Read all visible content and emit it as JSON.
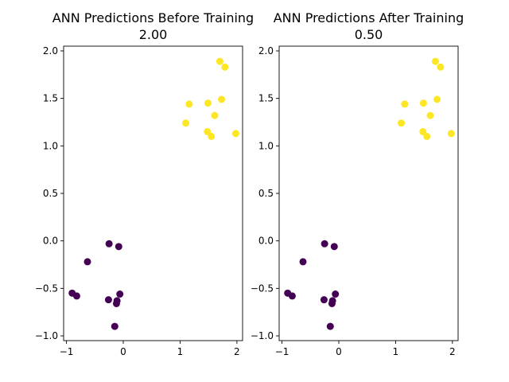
{
  "chart_data": [
    {
      "type": "scatter",
      "title": "ANN Predictions Before Training\n2.00",
      "title_lines": [
        "ANN Predictions Before Training",
        "2.00"
      ],
      "xlim": [
        -1.05,
        2.1
      ],
      "ylim": [
        -1.05,
        2.05
      ],
      "xticks": [
        -1,
        0,
        1,
        2
      ],
      "xtick_labels": [
        "−1",
        "0",
        "1",
        "2"
      ],
      "yticks": [
        -1.0,
        -0.5,
        0.0,
        0.5,
        1.0,
        1.5,
        2.0
      ],
      "ytick_labels": [
        "−1.0",
        "−0.5",
        "0.0",
        "0.5",
        "1.0",
        "1.5",
        "2.0"
      ],
      "grid": false,
      "series": [
        {
          "color": "#440154",
          "points": [
            [
              -0.25,
              -0.03
            ],
            [
              -0.08,
              -0.06
            ],
            [
              -0.63,
              -0.22
            ],
            [
              -0.9,
              -0.55
            ],
            [
              -0.82,
              -0.58
            ],
            [
              -0.26,
              -0.62
            ],
            [
              -0.06,
              -0.56
            ],
            [
              -0.11,
              -0.63
            ],
            [
              -0.12,
              -0.66
            ],
            [
              -0.15,
              -0.9
            ]
          ]
        },
        {
          "color": "#fde725",
          "points": [
            [
              1.7,
              1.89
            ],
            [
              1.79,
              1.83
            ],
            [
              1.16,
              1.44
            ],
            [
              1.49,
              1.45
            ],
            [
              1.73,
              1.49
            ],
            [
              1.61,
              1.32
            ],
            [
              1.1,
              1.24
            ],
            [
              1.48,
              1.15
            ],
            [
              1.55,
              1.1
            ],
            [
              1.98,
              1.13
            ]
          ]
        }
      ]
    },
    {
      "type": "scatter",
      "title": "ANN Predictions After Training\n0.50",
      "title_lines": [
        "ANN Predictions After Training",
        "0.50"
      ],
      "xlim": [
        -1.05,
        2.1
      ],
      "ylim": [
        -1.05,
        2.05
      ],
      "xticks": [
        -1,
        0,
        1,
        2
      ],
      "xtick_labels": [
        "−1",
        "0",
        "1",
        "2"
      ],
      "yticks": [
        -1.0,
        -0.5,
        0.0,
        0.5,
        1.0,
        1.5,
        2.0
      ],
      "ytick_labels": [
        "−1.0",
        "−0.5",
        "0.0",
        "0.5",
        "1.0",
        "1.5",
        "2.0"
      ],
      "grid": false,
      "series": [
        {
          "color": "#440154",
          "points": [
            [
              -0.25,
              -0.03
            ],
            [
              -0.08,
              -0.06
            ],
            [
              -0.63,
              -0.22
            ],
            [
              -0.9,
              -0.55
            ],
            [
              -0.82,
              -0.58
            ],
            [
              -0.26,
              -0.62
            ],
            [
              -0.06,
              -0.56
            ],
            [
              -0.11,
              -0.63
            ],
            [
              -0.12,
              -0.66
            ],
            [
              -0.15,
              -0.9
            ]
          ]
        },
        {
          "color": "#fde725",
          "points": [
            [
              1.7,
              1.89
            ],
            [
              1.79,
              1.83
            ],
            [
              1.16,
              1.44
            ],
            [
              1.49,
              1.45
            ],
            [
              1.73,
              1.49
            ],
            [
              1.61,
              1.32
            ],
            [
              1.1,
              1.24
            ],
            [
              1.48,
              1.15
            ],
            [
              1.55,
              1.1
            ],
            [
              1.98,
              1.13
            ]
          ]
        }
      ]
    }
  ]
}
